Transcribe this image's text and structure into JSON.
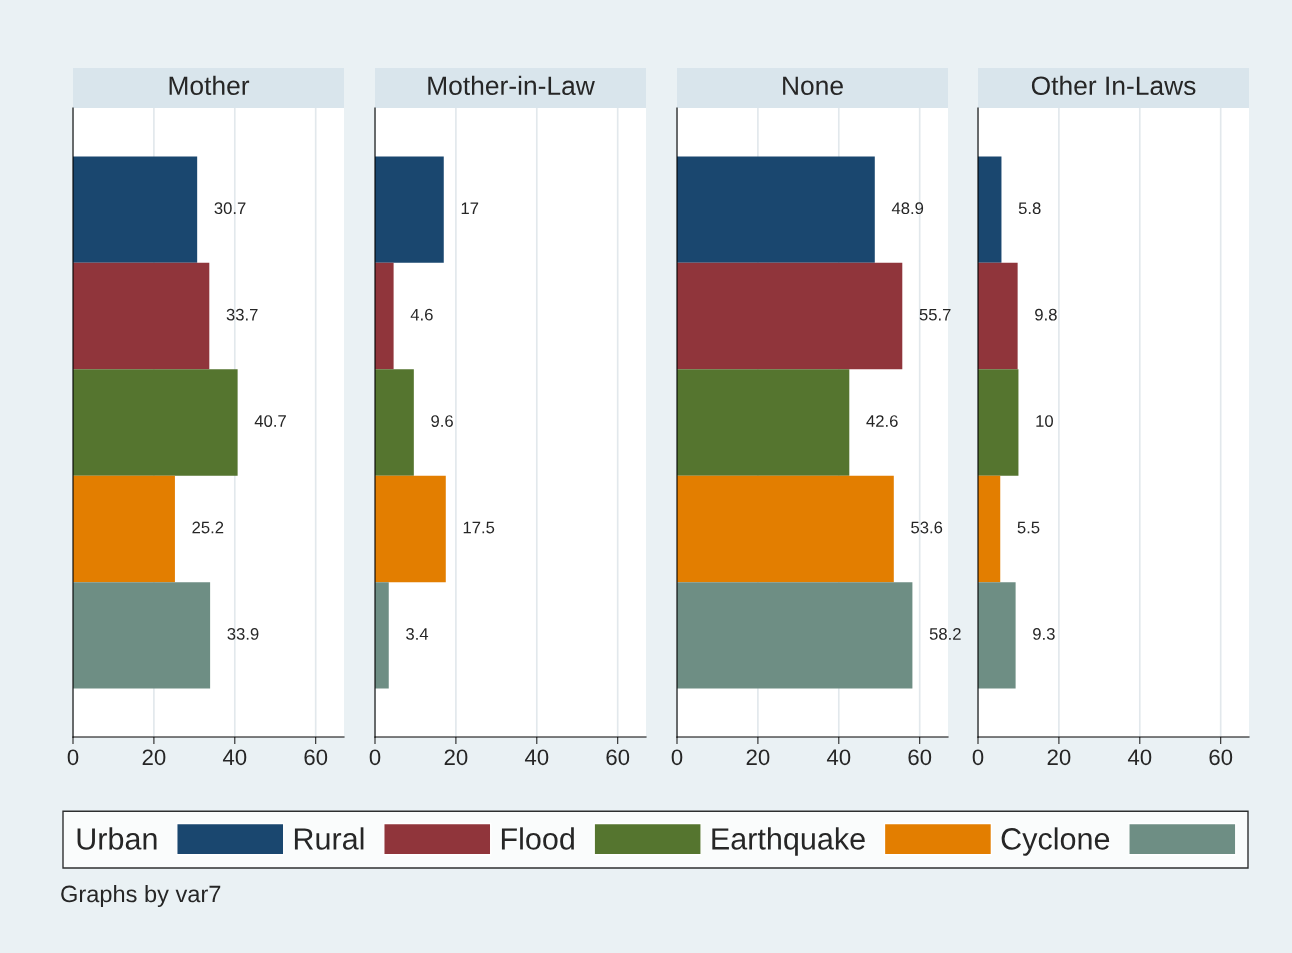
{
  "chart_data": [
    {
      "type": "bar",
      "orientation": "horizontal",
      "title": "Mother",
      "categories": [
        null
      ],
      "xlim": [
        0,
        67
      ],
      "xticks": [
        0,
        20,
        40,
        60
      ],
      "grid": "x",
      "tick_labels": "x",
      "data_labels": true,
      "legend": "bottom",
      "annotations": [
        "Graphs by var7"
      ],
      "series": [
        {
          "name": "Urban",
          "color": "#1a476f",
          "values": [
            30.7
          ]
        },
        {
          "name": "Rural",
          "color": "#90353b",
          "values": [
            33.7
          ]
        },
        {
          "name": "Flood",
          "color": "#55752f",
          "values": [
            40.7
          ]
        },
        {
          "name": "Earthquake",
          "color": "#e37e00",
          "values": [
            25.2
          ]
        },
        {
          "name": "Cyclone",
          "color": "#6e8e84",
          "values": [
            33.9
          ]
        }
      ]
    },
    {
      "type": "bar",
      "orientation": "horizontal",
      "title": "Mother-in-Law",
      "categories": [
        null
      ],
      "xlim": [
        0,
        67
      ],
      "xticks": [
        0,
        20,
        40,
        60
      ],
      "grid": "x",
      "tick_labels": "x",
      "data_labels": true,
      "series": [
        {
          "color": "#1a476f",
          "values": [
            17
          ]
        },
        {
          "color": "#90353b",
          "values": [
            4.6
          ]
        },
        {
          "color": "#55752f",
          "values": [
            9.6
          ]
        },
        {
          "color": "#e37e00",
          "values": [
            17.5
          ]
        },
        {
          "color": "#6e8e84",
          "values": [
            3.4
          ]
        }
      ]
    },
    {
      "type": "bar",
      "orientation": "horizontal",
      "title": "None",
      "categories": [
        null
      ],
      "xlim": [
        0,
        67
      ],
      "xticks": [
        0,
        20,
        40,
        60
      ],
      "grid": "x",
      "tick_labels": "x",
      "data_labels": true,
      "series": [
        {
          "color": "#1a476f",
          "values": [
            48.9
          ]
        },
        {
          "color": "#90353b",
          "values": [
            55.7
          ]
        },
        {
          "color": "#55752f",
          "values": [
            42.6
          ]
        },
        {
          "color": "#e37e00",
          "values": [
            53.6
          ]
        },
        {
          "color": "#6e8e84",
          "values": [
            58.2
          ]
        }
      ]
    },
    {
      "type": "bar",
      "orientation": "horizontal",
      "title": "Other In-Laws",
      "categories": [
        null
      ],
      "xlim": [
        0,
        67
      ],
      "xticks": [
        0,
        20,
        40,
        60
      ],
      "grid": "x",
      "tick_labels": "x",
      "data_labels": true,
      "series": [
        {
          "color": "#1a476f",
          "values": [
            5.8
          ]
        },
        {
          "color": "#90353b",
          "values": [
            9.8
          ]
        },
        {
          "color": "#55752f",
          "values": [
            10
          ]
        },
        {
          "color": "#e37e00",
          "values": [
            5.5
          ]
        },
        {
          "color": "#6e8e84",
          "values": [
            9.3
          ]
        }
      ]
    }
  ]
}
